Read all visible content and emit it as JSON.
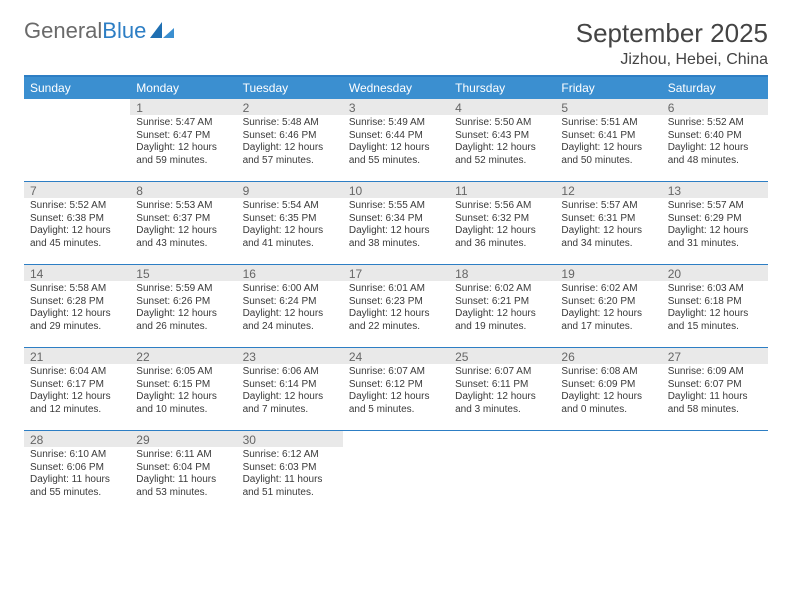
{
  "brand": {
    "part1": "General",
    "part2": "Blue"
  },
  "title": "September 2025",
  "location": "Jizhou, Hebei, China",
  "colors": {
    "header_bar": "#3b8fd0",
    "accent_line": "#2d7ec4",
    "daynum_bg": "#e9e9e9",
    "text": "#3a3a3a"
  },
  "weekdays": [
    "Sunday",
    "Monday",
    "Tuesday",
    "Wednesday",
    "Thursday",
    "Friday",
    "Saturday"
  ],
  "weeks": [
    [
      {
        "n": "",
        "sr": "",
        "ss": "",
        "dl1": "",
        "dl2": ""
      },
      {
        "n": "1",
        "sr": "Sunrise: 5:47 AM",
        "ss": "Sunset: 6:47 PM",
        "dl1": "Daylight: 12 hours",
        "dl2": "and 59 minutes."
      },
      {
        "n": "2",
        "sr": "Sunrise: 5:48 AM",
        "ss": "Sunset: 6:46 PM",
        "dl1": "Daylight: 12 hours",
        "dl2": "and 57 minutes."
      },
      {
        "n": "3",
        "sr": "Sunrise: 5:49 AM",
        "ss": "Sunset: 6:44 PM",
        "dl1": "Daylight: 12 hours",
        "dl2": "and 55 minutes."
      },
      {
        "n": "4",
        "sr": "Sunrise: 5:50 AM",
        "ss": "Sunset: 6:43 PM",
        "dl1": "Daylight: 12 hours",
        "dl2": "and 52 minutes."
      },
      {
        "n": "5",
        "sr": "Sunrise: 5:51 AM",
        "ss": "Sunset: 6:41 PM",
        "dl1": "Daylight: 12 hours",
        "dl2": "and 50 minutes."
      },
      {
        "n": "6",
        "sr": "Sunrise: 5:52 AM",
        "ss": "Sunset: 6:40 PM",
        "dl1": "Daylight: 12 hours",
        "dl2": "and 48 minutes."
      }
    ],
    [
      {
        "n": "7",
        "sr": "Sunrise: 5:52 AM",
        "ss": "Sunset: 6:38 PM",
        "dl1": "Daylight: 12 hours",
        "dl2": "and 45 minutes."
      },
      {
        "n": "8",
        "sr": "Sunrise: 5:53 AM",
        "ss": "Sunset: 6:37 PM",
        "dl1": "Daylight: 12 hours",
        "dl2": "and 43 minutes."
      },
      {
        "n": "9",
        "sr": "Sunrise: 5:54 AM",
        "ss": "Sunset: 6:35 PM",
        "dl1": "Daylight: 12 hours",
        "dl2": "and 41 minutes."
      },
      {
        "n": "10",
        "sr": "Sunrise: 5:55 AM",
        "ss": "Sunset: 6:34 PM",
        "dl1": "Daylight: 12 hours",
        "dl2": "and 38 minutes."
      },
      {
        "n": "11",
        "sr": "Sunrise: 5:56 AM",
        "ss": "Sunset: 6:32 PM",
        "dl1": "Daylight: 12 hours",
        "dl2": "and 36 minutes."
      },
      {
        "n": "12",
        "sr": "Sunrise: 5:57 AM",
        "ss": "Sunset: 6:31 PM",
        "dl1": "Daylight: 12 hours",
        "dl2": "and 34 minutes."
      },
      {
        "n": "13",
        "sr": "Sunrise: 5:57 AM",
        "ss": "Sunset: 6:29 PM",
        "dl1": "Daylight: 12 hours",
        "dl2": "and 31 minutes."
      }
    ],
    [
      {
        "n": "14",
        "sr": "Sunrise: 5:58 AM",
        "ss": "Sunset: 6:28 PM",
        "dl1": "Daylight: 12 hours",
        "dl2": "and 29 minutes."
      },
      {
        "n": "15",
        "sr": "Sunrise: 5:59 AM",
        "ss": "Sunset: 6:26 PM",
        "dl1": "Daylight: 12 hours",
        "dl2": "and 26 minutes."
      },
      {
        "n": "16",
        "sr": "Sunrise: 6:00 AM",
        "ss": "Sunset: 6:24 PM",
        "dl1": "Daylight: 12 hours",
        "dl2": "and 24 minutes."
      },
      {
        "n": "17",
        "sr": "Sunrise: 6:01 AM",
        "ss": "Sunset: 6:23 PM",
        "dl1": "Daylight: 12 hours",
        "dl2": "and 22 minutes."
      },
      {
        "n": "18",
        "sr": "Sunrise: 6:02 AM",
        "ss": "Sunset: 6:21 PM",
        "dl1": "Daylight: 12 hours",
        "dl2": "and 19 minutes."
      },
      {
        "n": "19",
        "sr": "Sunrise: 6:02 AM",
        "ss": "Sunset: 6:20 PM",
        "dl1": "Daylight: 12 hours",
        "dl2": "and 17 minutes."
      },
      {
        "n": "20",
        "sr": "Sunrise: 6:03 AM",
        "ss": "Sunset: 6:18 PM",
        "dl1": "Daylight: 12 hours",
        "dl2": "and 15 minutes."
      }
    ],
    [
      {
        "n": "21",
        "sr": "Sunrise: 6:04 AM",
        "ss": "Sunset: 6:17 PM",
        "dl1": "Daylight: 12 hours",
        "dl2": "and 12 minutes."
      },
      {
        "n": "22",
        "sr": "Sunrise: 6:05 AM",
        "ss": "Sunset: 6:15 PM",
        "dl1": "Daylight: 12 hours",
        "dl2": "and 10 minutes."
      },
      {
        "n": "23",
        "sr": "Sunrise: 6:06 AM",
        "ss": "Sunset: 6:14 PM",
        "dl1": "Daylight: 12 hours",
        "dl2": "and 7 minutes."
      },
      {
        "n": "24",
        "sr": "Sunrise: 6:07 AM",
        "ss": "Sunset: 6:12 PM",
        "dl1": "Daylight: 12 hours",
        "dl2": "and 5 minutes."
      },
      {
        "n": "25",
        "sr": "Sunrise: 6:07 AM",
        "ss": "Sunset: 6:11 PM",
        "dl1": "Daylight: 12 hours",
        "dl2": "and 3 minutes."
      },
      {
        "n": "26",
        "sr": "Sunrise: 6:08 AM",
        "ss": "Sunset: 6:09 PM",
        "dl1": "Daylight: 12 hours",
        "dl2": "and 0 minutes."
      },
      {
        "n": "27",
        "sr": "Sunrise: 6:09 AM",
        "ss": "Sunset: 6:07 PM",
        "dl1": "Daylight: 11 hours",
        "dl2": "and 58 minutes."
      }
    ],
    [
      {
        "n": "28",
        "sr": "Sunrise: 6:10 AM",
        "ss": "Sunset: 6:06 PM",
        "dl1": "Daylight: 11 hours",
        "dl2": "and 55 minutes."
      },
      {
        "n": "29",
        "sr": "Sunrise: 6:11 AM",
        "ss": "Sunset: 6:04 PM",
        "dl1": "Daylight: 11 hours",
        "dl2": "and 53 minutes."
      },
      {
        "n": "30",
        "sr": "Sunrise: 6:12 AM",
        "ss": "Sunset: 6:03 PM",
        "dl1": "Daylight: 11 hours",
        "dl2": "and 51 minutes."
      },
      {
        "n": "",
        "sr": "",
        "ss": "",
        "dl1": "",
        "dl2": ""
      },
      {
        "n": "",
        "sr": "",
        "ss": "",
        "dl1": "",
        "dl2": ""
      },
      {
        "n": "",
        "sr": "",
        "ss": "",
        "dl1": "",
        "dl2": ""
      },
      {
        "n": "",
        "sr": "",
        "ss": "",
        "dl1": "",
        "dl2": ""
      }
    ]
  ]
}
